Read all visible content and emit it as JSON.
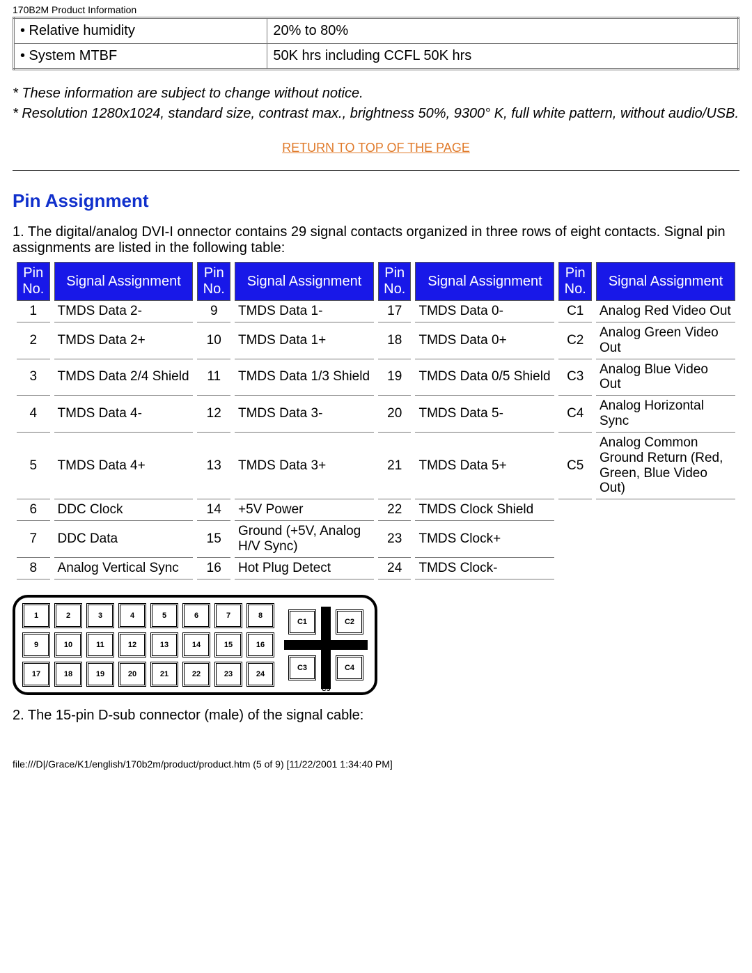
{
  "header": {
    "title": "170B2M Product Information"
  },
  "specs": {
    "rows": [
      {
        "label": "• Relative humidity",
        "value": "20% to 80%"
      },
      {
        "label": "• System MTBF",
        "value": "50K hrs including CCFL 50K hrs"
      }
    ]
  },
  "notes": {
    "line1": "* These information are subject to change without notice.",
    "line2": "* Resolution 1280x1024, standard size, contrast max., brightness 50%, 9300° K, full white pattern, without audio/USB."
  },
  "return_link": "RETURN TO TOP OF THE PAGE",
  "section_title": "Pin Assignment",
  "intro_text": "1. The digital/analog DVI-I onnector contains 29 signal contacts organized in three rows of eight contacts. Signal pin assignments are listed in the following table:",
  "pin_table": {
    "headers": {
      "pin": "Pin No.",
      "signal": "Signal Assignment"
    },
    "header_bg": "#1818e8",
    "header_fg": "#ffffff",
    "cols": [
      [
        {
          "pin": "1",
          "sig": "TMDS Data 2-"
        },
        {
          "pin": "2",
          "sig": "TMDS Data 2+"
        },
        {
          "pin": "3",
          "sig": "TMDS Data 2/4 Shield"
        },
        {
          "pin": "4",
          "sig": "TMDS Data 4-"
        },
        {
          "pin": "5",
          "sig": "TMDS Data 4+"
        },
        {
          "pin": "6",
          "sig": "DDC Clock"
        },
        {
          "pin": "7",
          "sig": "DDC Data"
        },
        {
          "pin": "8",
          "sig": "Analog Vertical Sync"
        }
      ],
      [
        {
          "pin": "9",
          "sig": "TMDS Data 1-"
        },
        {
          "pin": "10",
          "sig": "TMDS Data 1+"
        },
        {
          "pin": "11",
          "sig": "TMDS Data 1/3 Shield"
        },
        {
          "pin": "12",
          "sig": "TMDS Data 3-"
        },
        {
          "pin": "13",
          "sig": "TMDS Data 3+"
        },
        {
          "pin": "14",
          "sig": "+5V Power"
        },
        {
          "pin": "15",
          "sig": "Ground (+5V, Analog H/V Sync)"
        },
        {
          "pin": "16",
          "sig": "Hot Plug Detect"
        }
      ],
      [
        {
          "pin": "17",
          "sig": "TMDS Data 0-"
        },
        {
          "pin": "18",
          "sig": "TMDS Data 0+"
        },
        {
          "pin": "19",
          "sig": "TMDS Data 0/5 Shield"
        },
        {
          "pin": "20",
          "sig": "TMDS Data 5-"
        },
        {
          "pin": "21",
          "sig": "TMDS Data 5+"
        },
        {
          "pin": "22",
          "sig": "TMDS Clock Shield"
        },
        {
          "pin": "23",
          "sig": "TMDS Clock+"
        },
        {
          "pin": "24",
          "sig": "TMDS Clock-"
        }
      ],
      [
        {
          "pin": "C1",
          "sig": "Analog Red Video Out"
        },
        {
          "pin": "C2",
          "sig": "Analog Green Video Out"
        },
        {
          "pin": "C3",
          "sig": "Analog Blue Video Out"
        },
        {
          "pin": "C4",
          "sig": "Analog Horizontal Sync"
        },
        {
          "pin": "C5",
          "sig": "Analog Common Ground Return (Red, Green, Blue Video Out)"
        }
      ]
    ]
  },
  "connector": {
    "rows": [
      [
        "1",
        "2",
        "3",
        "4",
        "5",
        "6",
        "7",
        "8"
      ],
      [
        "9",
        "10",
        "11",
        "12",
        "13",
        "14",
        "15",
        "16"
      ],
      [
        "17",
        "18",
        "19",
        "20",
        "21",
        "22",
        "23",
        "24"
      ]
    ],
    "c_pins": {
      "c1": "C1",
      "c2": "C2",
      "c3": "C3",
      "c4": "C4",
      "c5": "C5"
    }
  },
  "after_connector": "2. The 15-pin D-sub connector (male) of the signal cable:",
  "footer": "file:///D|/Grace/K1/english/170b2m/product/product.htm (5 of 9) [11/22/2001 1:34:40 PM]"
}
